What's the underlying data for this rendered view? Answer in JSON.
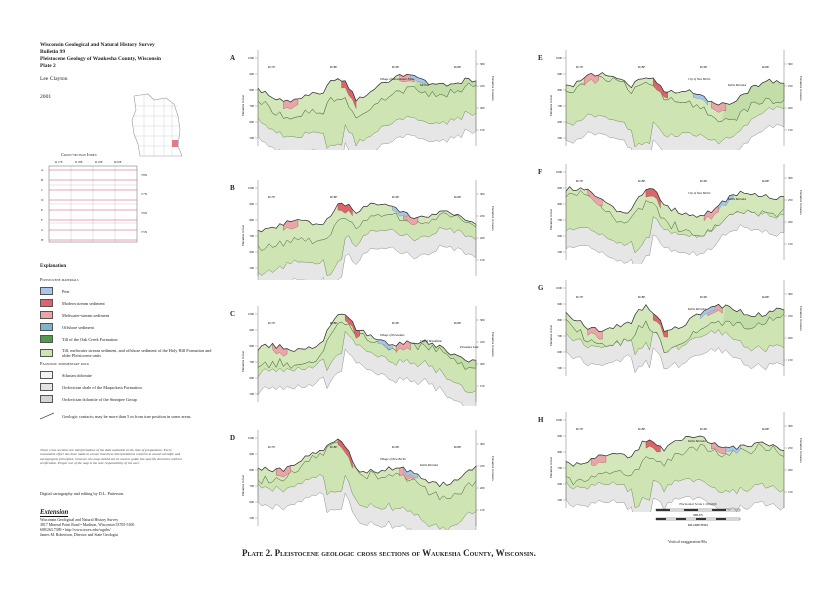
{
  "header": {
    "lines": [
      "Wisconsin Geological and Natural History Survey",
      "Bulletin 99",
      "Pleistocene Geology of Waukesha County, Wisconsin",
      "Plate 2"
    ],
    "author": "Lee Clayton",
    "year": "2001"
  },
  "index_map": {
    "title": "Cross-section Index",
    "columns": [
      "R17E",
      "R18E",
      "R19E",
      "R20E"
    ],
    "rows": [
      "A",
      "B",
      "C",
      "D",
      "E",
      "F",
      "G",
      "H"
    ],
    "townships": [
      "T8N",
      "T7N",
      "T6N",
      "T5N"
    ]
  },
  "explanation": {
    "title": "Explanation",
    "pleistocene_heading": "Pleistocene materials",
    "items": [
      {
        "label": "Peat",
        "code": "p",
        "color": "#a9c6e8"
      },
      {
        "label": "Modern stream sediment",
        "code": "ms",
        "color": "#d9666a"
      },
      {
        "label": "Meltwater-stream sediment",
        "code": "mw",
        "color": "#e9a6a8"
      },
      {
        "label": "Offshore sediment",
        "code": "os",
        "color": "#7fb6c9"
      },
      {
        "label": "Till of the Oak Creek Formation",
        "code": "oc",
        "color": "#4f9a4c"
      },
      {
        "label": "Till, meltwater stream sediment, and offshore sediment of the Holy Hill Formation and older Pleistocene units",
        "code": "hh",
        "color": "#cfe4b3"
      }
    ],
    "paleozoic_heading": "Paleozoic sedimentary rock",
    "rock_items": [
      {
        "label": "Silurian dolomite",
        "code": "S"
      },
      {
        "label": "Ordovician shale of the Maquoketa Formation",
        "code": "Om"
      },
      {
        "label": "Ordovician dolomite of the Sinnipee Group",
        "code": "Os"
      }
    ],
    "contact_label": "Geologic contacts; may be more than 5 m from true position in some areas."
  },
  "note": "These cross sections are interpretations of the data available at the time of preparation. Every reasonable effort has been made to ensure that these interpretations conform to sound scientific and cartographic principles; however, the map should not be used to guide site-specific decisions without verification. Proper use of the map is the sole responsibility of the user.",
  "credits": "Digital cartography and editing by D.L. Patterson.",
  "logo": "Extension",
  "address": [
    "Wisconsin Geological and Natural History Survey",
    "3817 Mineral Point Road • Madison, Wisconsin 53705-5100",
    "608/263.7389 • http://www.uwex.edu/wgnhs/",
    "James M. Robertson, Director and State Geologist"
  ],
  "plate_title": "Plate 2. Pleistocene geologic cross sections of Waukesha County, Wisconsin.",
  "sections": [
    {
      "letter": "A",
      "ranges": [
        "R17E",
        "R18E",
        "R19E",
        "R20E"
      ],
      "labels": [
        "Village of Menomonee Falls",
        "Merton"
      ]
    },
    {
      "letter": "B",
      "ranges": [
        "R17E",
        "R18E",
        "R19E",
        "R20E"
      ],
      "labels": []
    },
    {
      "letter": "C",
      "ranges": [
        "R17E",
        "R18E",
        "R19E",
        "R20E"
      ],
      "labels": [
        "Village of Pewaukee",
        "City of Brookfield",
        "Pewaukee Lake"
      ]
    },
    {
      "letter": "D",
      "ranges": [
        "R17E",
        "R18E",
        "R19E",
        "R20E"
      ],
      "labels": [
        "Village of New Berlin",
        "Kettle Moraine"
      ]
    },
    {
      "letter": "E",
      "ranges": [
        "R17E",
        "R18E",
        "R19E",
        "R20E"
      ],
      "labels": [
        "City of New Berlin",
        "Kettle Moraine"
      ]
    },
    {
      "letter": "F",
      "ranges": [
        "R17E",
        "R18E",
        "R19E",
        "R20E"
      ],
      "labels": [
        "City of New Berlin",
        "Kettle Moraine"
      ]
    },
    {
      "letter": "G",
      "ranges": [
        "R17E",
        "R18E",
        "R19E",
        "R20E"
      ],
      "labels": [
        "Kettle Moraine"
      ]
    },
    {
      "letter": "H",
      "ranges": [
        "R17E",
        "R18E",
        "R19E",
        "R20E"
      ],
      "labels": [
        "Kettle Moraine"
      ]
    }
  ],
  "axis": {
    "left": "Elevation in feet",
    "right": "Elevation in meters",
    "feet_ticks": [
      "1000",
      "900",
      "800",
      "700",
      "600",
      "500"
    ],
    "meter_ticks": [
      "300",
      "250",
      "200",
      "150"
    ]
  },
  "scale": {
    "title": "Horizontal Scale 1:100,000",
    "miles_label": "MILES",
    "km_label": "KILOMETERS",
    "ticks": [
      "0",
      "1",
      "2",
      "3",
      "4",
      "5"
    ]
  },
  "vertical_exaggeration": "Vertical exaggeration 80x"
}
